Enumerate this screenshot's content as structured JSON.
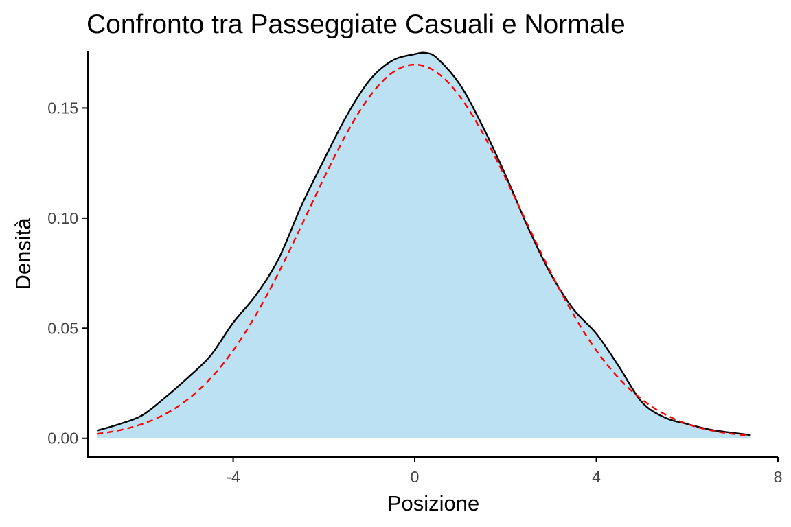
{
  "chart_data": {
    "type": "area",
    "title": "Confronto tra Passeggiate Casuali e Normale",
    "xlabel": "Posizione",
    "ylabel": "Densità",
    "xlim": [
      -7.2,
      8.0
    ],
    "ylim": [
      -0.0085,
      0.176
    ],
    "xticks": [
      {
        "value": -4,
        "label": "-4"
      },
      {
        "value": 0,
        "label": "0"
      },
      {
        "value": 4,
        "label": "4"
      },
      {
        "value": 8,
        "label": "8"
      }
    ],
    "yticks": [
      {
        "value": 0.0,
        "label": "0.00"
      },
      {
        "value": 0.05,
        "label": "0.05"
      },
      {
        "value": 0.1,
        "label": "0.10"
      },
      {
        "value": 0.15,
        "label": "0.15"
      }
    ],
    "grid": false,
    "legend": "none",
    "series": [
      {
        "kind": "density",
        "style": "solid filled",
        "fill_color": "#bbe1f2",
        "line_color": "#000000",
        "x": [
          -7.0,
          -6.5,
          -6.0,
          -5.5,
          -5.0,
          -4.5,
          -4.0,
          -3.5,
          -3.0,
          -2.5,
          -2.0,
          -1.5,
          -1.0,
          -0.5,
          0.0,
          0.25,
          0.5,
          1.0,
          1.5,
          2.0,
          2.5,
          3.0,
          3.5,
          4.0,
          4.5,
          5.0,
          5.5,
          6.0,
          6.5,
          7.0,
          7.4
        ],
        "y": [
          0.0035,
          0.0065,
          0.0105,
          0.0185,
          0.0275,
          0.0375,
          0.0525,
          0.065,
          0.0815,
          0.1055,
          0.1265,
          0.1465,
          0.1625,
          0.1715,
          0.1745,
          0.175,
          0.1725,
          0.1605,
          0.1415,
          0.1195,
          0.0955,
          0.0745,
          0.0585,
          0.0475,
          0.0325,
          0.0165,
          0.0095,
          0.0065,
          0.004,
          0.0025,
          0.0015
        ]
      },
      {
        "kind": "normal",
        "style": "dashed",
        "line_color": "#ff0000",
        "mean": 0.0,
        "sd": 2.35
      }
    ]
  }
}
